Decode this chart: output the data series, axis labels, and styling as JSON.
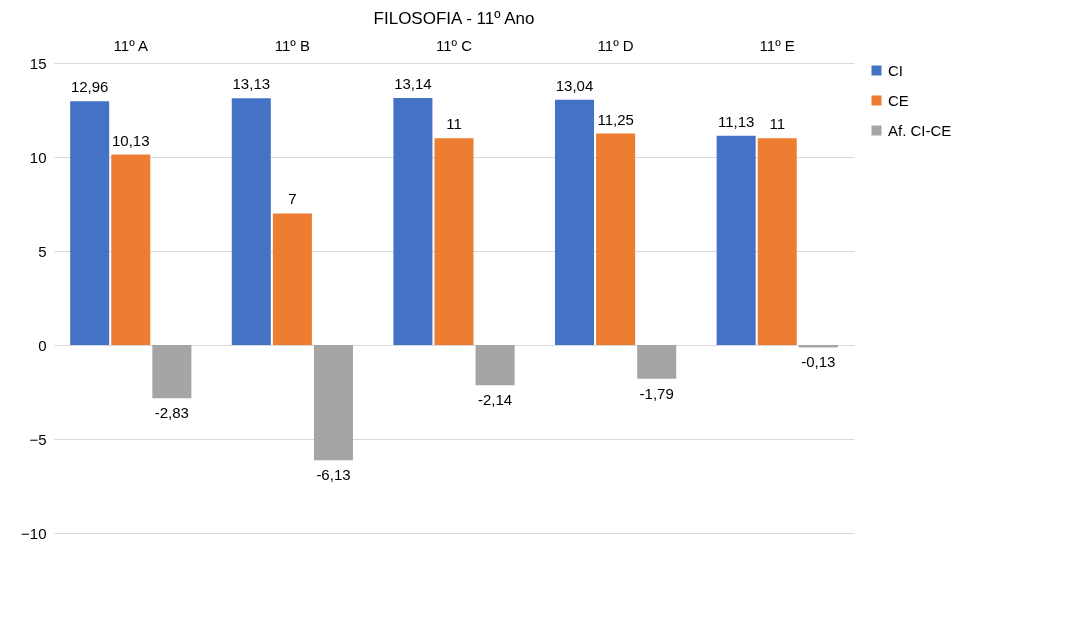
{
  "chart_data": {
    "type": "bar",
    "title": "FILOSOFIA  - 11º Ano",
    "categories": [
      "11º A",
      "11º B",
      "11º C",
      "11º D",
      "11º E"
    ],
    "series": [
      {
        "name": "CI",
        "color": "#4472c4",
        "values": [
          12.96,
          13.13,
          13.14,
          13.04,
          11.13
        ],
        "value_labels": [
          "12,96",
          "13,13",
          "13,14",
          "13,04",
          "11,13"
        ]
      },
      {
        "name": "CE",
        "color": "#ed7d31",
        "values": [
          10.13,
          7,
          11,
          11.25,
          11
        ],
        "value_labels": [
          "10,13",
          "7",
          "11",
          "11,25",
          "11"
        ]
      },
      {
        "name": "Af. CI-CE",
        "color": "#a5a5a5",
        "values": [
          -2.83,
          -6.13,
          -2.14,
          -1.79,
          -0.13
        ],
        "value_labels": [
          "-2,83",
          "-6,13",
          "-2,14",
          "-1,79",
          "-0,13"
        ]
      }
    ],
    "ylim": [
      -10,
      15
    ],
    "yticks": [
      -10,
      -5,
      0,
      5,
      10,
      15
    ],
    "grid": "y",
    "legend": "right"
  }
}
